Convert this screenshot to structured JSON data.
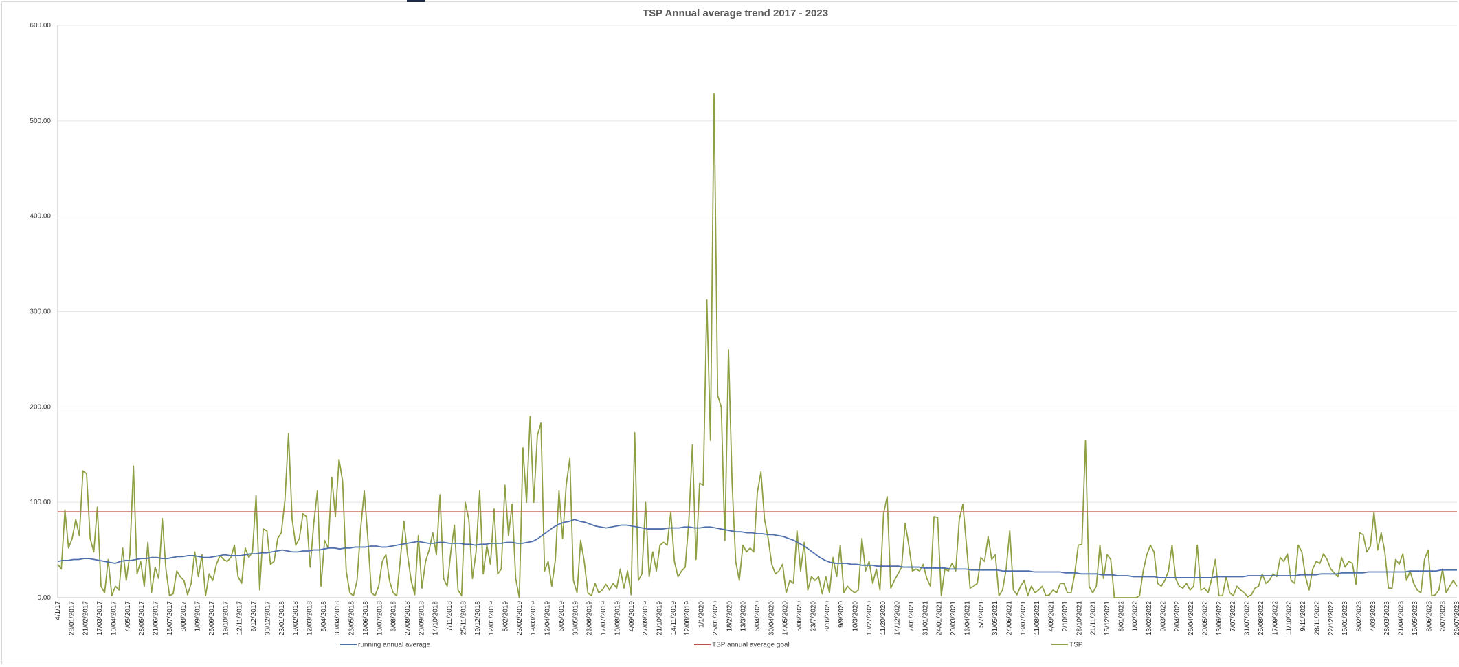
{
  "chart_data": {
    "type": "line",
    "title": "TSP Annual average trend 2017 - 2023",
    "xlabel": "",
    "ylabel": "",
    "ylim": [
      0,
      600
    ],
    "yticks": [
      "0.00",
      "100.00",
      "200.00",
      "300.00",
      "400.00",
      "500.00",
      "600.00"
    ],
    "grid": true,
    "legend_position": "bottom",
    "x_tick_labels": [
      "4/1/17",
      "28/01/2017",
      "21/02/2017",
      "17/03/2017",
      "10/04/2017",
      "4/05/2017",
      "28/05/2017",
      "21/06/2017",
      "15/07/2017",
      "8/08/2017",
      "1/09/2017",
      "25/09/2017",
      "19/10/2017",
      "12/11/2017",
      "6/12/2017",
      "30/12/2017",
      "23/01/2018",
      "19/02/2018",
      "12/03/2018",
      "5/04/2018",
      "30/04/2018",
      "23/05/2018",
      "16/06/2018",
      "10/07/2018",
      "3/08/2018",
      "27/08/2018",
      "20/09/2018",
      "14/10/2018",
      "7/11/2018",
      "25/11/2018",
      "19/12/2018",
      "12/01/2019",
      "5/02/2019",
      "23/02/2019",
      "19/03/2019",
      "12/04/2019",
      "6/05/2019",
      "30/05/2019",
      "23/06/2019",
      "17/07/2019",
      "10/08/2019",
      "4/09/2019",
      "27/09/2019",
      "21/10/2019",
      "14/11/2019",
      "12/08/2019",
      "1/1/2020",
      "25/01/2020",
      "18/2/2020",
      "13/3/2020",
      "6/04/2020",
      "30/04/2020",
      "14/05/2020",
      "5/06/2020",
      "23/7/2020",
      "8/16/2020",
      "9/9/2020",
      "10/3/2020",
      "10/27/2020",
      "11/20/2020",
      "14/12/2020",
      "7/01/2021",
      "31/01/2021",
      "24/01/2021",
      "20/03/2021",
      "13/04/2021",
      "5/7/2021",
      "31/05/2021",
      "24/06/2021",
      "18/07/2021",
      "11/08/2021",
      "4/09/2021",
      "2/10/2021",
      "28/10/2021",
      "21/11/2021",
      "15/12/2021",
      "8/01/2022",
      "1/02/2022",
      "13/02/2022",
      "9/03/2022",
      "2/04/2022",
      "26/04/2022",
      "20/05/2022",
      "13/06/2022",
      "7/07/2022",
      "31/07/2022",
      "25/08/2022",
      "17/09/2022",
      "11/10/2022",
      "9/11/2022",
      "28/11/2022",
      "22/12/2022",
      "15/01/2023",
      "8/02/2023",
      "4/03/2023",
      "28/03/2023",
      "21/04/2023",
      "15/05/2023",
      "8/06/2023",
      "2/07/2023",
      "26/07/2023"
    ],
    "series": [
      {
        "name": "running annual average",
        "color": "#4f6fad",
        "values": [
          38,
          39,
          39,
          40,
          40,
          41,
          41,
          40,
          39,
          38,
          37,
          36,
          38,
          39,
          39,
          40,
          41,
          41,
          42,
          42,
          41,
          41,
          42,
          43,
          43,
          44,
          44,
          43,
          42,
          42,
          43,
          44,
          45,
          44,
          44,
          44,
          45,
          46,
          46,
          47,
          47,
          48,
          49,
          50,
          49,
          48,
          48,
          49,
          49,
          50,
          50,
          51,
          52,
          52,
          51,
          52,
          52,
          53,
          53,
          53,
          54,
          54,
          53,
          53,
          54,
          55,
          56,
          57,
          58,
          59,
          58,
          57,
          57,
          58,
          58,
          57,
          57,
          57,
          56,
          56,
          55,
          56,
          56,
          57,
          57,
          57,
          58,
          58,
          57,
          57,
          58,
          59,
          62,
          66,
          70,
          74,
          77,
          79,
          80,
          82,
          80,
          79,
          77,
          75,
          74,
          73,
          74,
          75,
          76,
          76,
          75,
          74,
          73,
          72,
          72,
          72,
          72,
          73,
          73,
          73,
          74,
          74,
          73,
          73,
          74,
          74,
          73,
          72,
          71,
          70,
          69,
          69,
          68,
          68,
          67,
          67,
          66,
          66,
          65,
          64,
          62,
          60,
          57,
          54,
          50,
          46,
          42,
          39,
          37,
          36,
          36,
          36,
          35,
          35,
          34,
          34,
          34,
          33,
          33,
          33,
          33,
          33,
          32,
          32,
          32,
          32,
          31,
          31,
          31,
          31,
          31,
          30,
          30,
          30,
          30,
          29,
          29,
          29,
          29,
          29,
          29,
          28,
          28,
          28,
          28,
          28,
          28,
          27,
          27,
          27,
          27,
          27,
          27,
          26,
          26,
          26,
          25,
          25,
          25,
          25,
          24,
          24,
          24,
          23,
          23,
          23,
          22,
          22,
          22,
          22,
          22,
          21,
          21,
          21,
          21,
          21,
          21,
          21,
          21,
          21,
          21,
          21,
          22,
          22,
          22,
          22,
          22,
          22,
          23,
          23,
          23,
          23,
          23,
          23,
          23,
          23,
          23,
          23,
          24,
          24,
          24,
          24,
          25,
          25,
          25,
          25,
          26,
          26,
          26,
          26,
          26,
          27,
          27,
          27,
          27,
          27,
          27,
          27,
          27,
          28,
          28,
          28,
          28,
          28,
          28,
          29,
          29,
          29,
          29
        ]
      },
      {
        "name": "TSP annual average goal",
        "color": "#c0504d",
        "values": [
          90
        ]
      },
      {
        "name": "TSP",
        "color": "#8ea044",
        "values": [
          35,
          30,
          92,
          52,
          62,
          82,
          65,
          133,
          130,
          62,
          48,
          95,
          12,
          5,
          40,
          2,
          12,
          8,
          52,
          18,
          45,
          138,
          25,
          38,
          12,
          58,
          5,
          32,
          20,
          83,
          30,
          2,
          4,
          28,
          22,
          18,
          3,
          15,
          48,
          22,
          45,
          2,
          25,
          18,
          35,
          44,
          40,
          38,
          42,
          55,
          22,
          15,
          52,
          42,
          48,
          107,
          8,
          72,
          70,
          35,
          38,
          62,
          68,
          102,
          172,
          82,
          55,
          62,
          88,
          85,
          32,
          78,
          112,
          12,
          60,
          52,
          126,
          85,
          145,
          122,
          28,
          5,
          2,
          18,
          72,
          112,
          62,
          5,
          2,
          12,
          38,
          45,
          18,
          5,
          2,
          40,
          80,
          45,
          18,
          3,
          65,
          10,
          38,
          50,
          68,
          45,
          108,
          20,
          12,
          48,
          76,
          8,
          2,
          100,
          82,
          20,
          48,
          112,
          25,
          55,
          35,
          93,
          25,
          30,
          118,
          65,
          98,
          20,
          0,
          157,
          100,
          190,
          100,
          170,
          183,
          28,
          38,
          12,
          40,
          112,
          62,
          118,
          146,
          18,
          5,
          60,
          38,
          5,
          2,
          15,
          5,
          8,
          14,
          8,
          15,
          10,
          30,
          10,
          28,
          3,
          173,
          18,
          25,
          100,
          22,
          48,
          28,
          55,
          58,
          55,
          90,
          38,
          22,
          28,
          32,
          80,
          160,
          40,
          120,
          118,
          312,
          165,
          528,
          212,
          200,
          60,
          260,
          120,
          38,
          18,
          55,
          48,
          52,
          48,
          110,
          132,
          82,
          62,
          35,
          25,
          28,
          35,
          5,
          18,
          15,
          70,
          28,
          58,
          8,
          22,
          18,
          22,
          4,
          22,
          5,
          42,
          22,
          55,
          5,
          12,
          8,
          5,
          8,
          62,
          28,
          38,
          15,
          30,
          8,
          88,
          106,
          10,
          18,
          25,
          32,
          78,
          55,
          28,
          30,
          28,
          35,
          20,
          12,
          85,
          84,
          2,
          30,
          28,
          36,
          28,
          82,
          98,
          55,
          10,
          12,
          15,
          42,
          38,
          64,
          40,
          45,
          2,
          8,
          30,
          70,
          8,
          3,
          12,
          18,
          2,
          12,
          5,
          8,
          12,
          2,
          3,
          8,
          5,
          15,
          15,
          5,
          5,
          25,
          55,
          56,
          165,
          12,
          5,
          12,
          55,
          20,
          45,
          40,
          0,
          0,
          0,
          0,
          0,
          0,
          0,
          2,
          28,
          45,
          55,
          48,
          15,
          12,
          18,
          28,
          55,
          20,
          12,
          10,
          15,
          8,
          12,
          55,
          8,
          10,
          5,
          20,
          40,
          2,
          2,
          22,
          5,
          2,
          12,
          8,
          5,
          1,
          3,
          10,
          12,
          25,
          15,
          18,
          25,
          22,
          42,
          38,
          46,
          18,
          15,
          55,
          48,
          22,
          8,
          30,
          38,
          36,
          46,
          40,
          30,
          26,
          22,
          42,
          32,
          38,
          36,
          14,
          68,
          66,
          48,
          54,
          90,
          50,
          68,
          48,
          10,
          10,
          40,
          35,
          46,
          18,
          28,
          15,
          8,
          5,
          40,
          50,
          2,
          3,
          8,
          30,
          5,
          12,
          18,
          12
        ]
      }
    ]
  }
}
